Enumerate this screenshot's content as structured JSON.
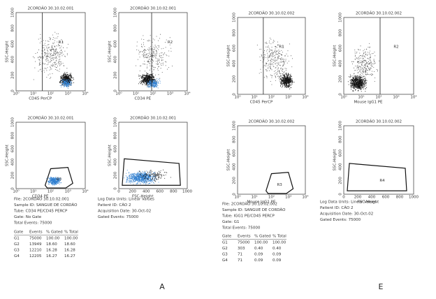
{
  "panels": [
    {
      "label": "A",
      "plots": [
        {
          "title": "2CORDÃO 30.10.02.001",
          "y_label": "SSC-Height",
          "x_label": "CD45 PerCP",
          "region": "R1",
          "x_ticks": [
            "10⁰",
            "10¹",
            "10²",
            "10³",
            "10⁴"
          ],
          "y_ticks": [
            "0",
            "200",
            "400",
            "600",
            "800",
            "1000"
          ]
        },
        {
          "title": "2CORDÃO 30.10.02.001",
          "y_label": "SSC-Height",
          "x_label": "CD34 PE",
          "region": "R2",
          "x_ticks": [
            "10⁰",
            "10¹",
            "10²",
            "10³",
            "10⁴"
          ],
          "y_ticks": [
            "0",
            "200",
            "400",
            "600",
            "800",
            "1000"
          ]
        },
        {
          "title": "2CORDÃO 30.10.02.001",
          "y_label": "SSC-Height",
          "x_label": "CD34 PE",
          "region": "R3",
          "x_ticks": [
            "10⁰",
            "10¹",
            "10²",
            "10³",
            "10⁴"
          ],
          "y_ticks": [
            "0",
            "200",
            "400",
            "600",
            "800",
            "1000"
          ]
        },
        {
          "title": "2CORDÃO 30.10.02.001",
          "y_label": "SSC-Height",
          "x_label": "FSC-Height",
          "region": "R4",
          "x_ticks": [
            "0",
            "200",
            "400",
            "600",
            "800",
            "1000"
          ],
          "y_ticks": [
            "0",
            "200",
            "400",
            "600",
            "800",
            "1000"
          ]
        }
      ],
      "info_left": [
        "File: 2CORDÃO 30.10.02.001",
        "Sample ID: SANGUE DE CORDÃO",
        "Tube: CD34 PE/CD45 PERCP",
        "Gate: No Gate",
        "Total Events: 75000"
      ],
      "info_right": [
        "Log Data Units: Linear Values",
        "Patient ID: CÃO 2",
        "Acquisition Date: 30-Oct-02",
        "Gated Events: 75000"
      ],
      "table": {
        "header": [
          "Gate",
          "Events",
          "% Gated",
          "% Total"
        ],
        "rows": [
          [
            "G1",
            "75000",
            "100.00",
            "100.00"
          ],
          [
            "G2",
            "13949",
            "18.60",
            "18.60"
          ],
          [
            "G3",
            "12210",
            "16.28",
            "16.28"
          ],
          [
            "G4",
            "12205",
            "16.27",
            "16.27"
          ]
        ]
      }
    },
    {
      "label": "E",
      "plots": [
        {
          "title": "2CORDÃO 30.10.02.002",
          "y_label": "SSC-Height",
          "x_label": "CD45 PerCP",
          "region": "R1",
          "x_ticks": [
            "10⁰",
            "10¹",
            "10²",
            "10³",
            "10⁴"
          ],
          "y_ticks": [
            "0",
            "200",
            "400",
            "600",
            "800",
            "1000"
          ]
        },
        {
          "title": "2CORDÃO 30.10.02.002",
          "y_label": "SSC-Height",
          "x_label": "Mouse IgG1 PE",
          "region": "R2",
          "x_ticks": [
            "10⁰",
            "10¹",
            "10²",
            "10³",
            "10⁴"
          ],
          "y_ticks": [
            "0",
            "200",
            "400",
            "600",
            "800",
            "1000"
          ]
        },
        {
          "title": "2CORDÃO 30.10.02.002",
          "y_label": "SSC-Height",
          "x_label": "Mouse IgG1 PE",
          "region": "R3",
          "x_ticks": [
            "10⁰",
            "10¹",
            "10²",
            "10³",
            "10⁴"
          ],
          "y_ticks": [
            "0",
            "200",
            "400",
            "600",
            "800",
            "1000"
          ]
        },
        {
          "title": "2CORDÃO 30.10.02.002",
          "y_label": "SSC-Height",
          "x_label": "FSC-Height",
          "region": "R4",
          "x_ticks": [
            "0",
            "200",
            "400",
            "600",
            "800",
            "1000"
          ],
          "y_ticks": [
            "0",
            "200",
            "400",
            "600",
            "800",
            "1000"
          ]
        }
      ],
      "info_left": [
        "File: 2CORDÃO 30.10.02.002",
        "Sample ID: SANGUE DE CORDÃO",
        "Tube: IGG1 PE/CD45 PERCP",
        "Gate: G1",
        "Total Events: 75000"
      ],
      "info_right": [
        "Log Data Units: Linear Values",
        "Patient ID: CÃO 2",
        "Acquisition Date: 30-Oct-02",
        "Gated Events: 75000"
      ],
      "table": {
        "header": [
          "Gate",
          "Events",
          "% Gated",
          "% Total"
        ],
        "rows": [
          [
            "G1",
            "75000",
            "100.00",
            "100.00"
          ],
          [
            "G2",
            "303",
            "0.40",
            "0.40"
          ],
          [
            "G3",
            "71",
            "0.09",
            "0.09"
          ],
          [
            "G4",
            "71",
            "0.09",
            "0.09"
          ]
        ]
      }
    }
  ]
}
